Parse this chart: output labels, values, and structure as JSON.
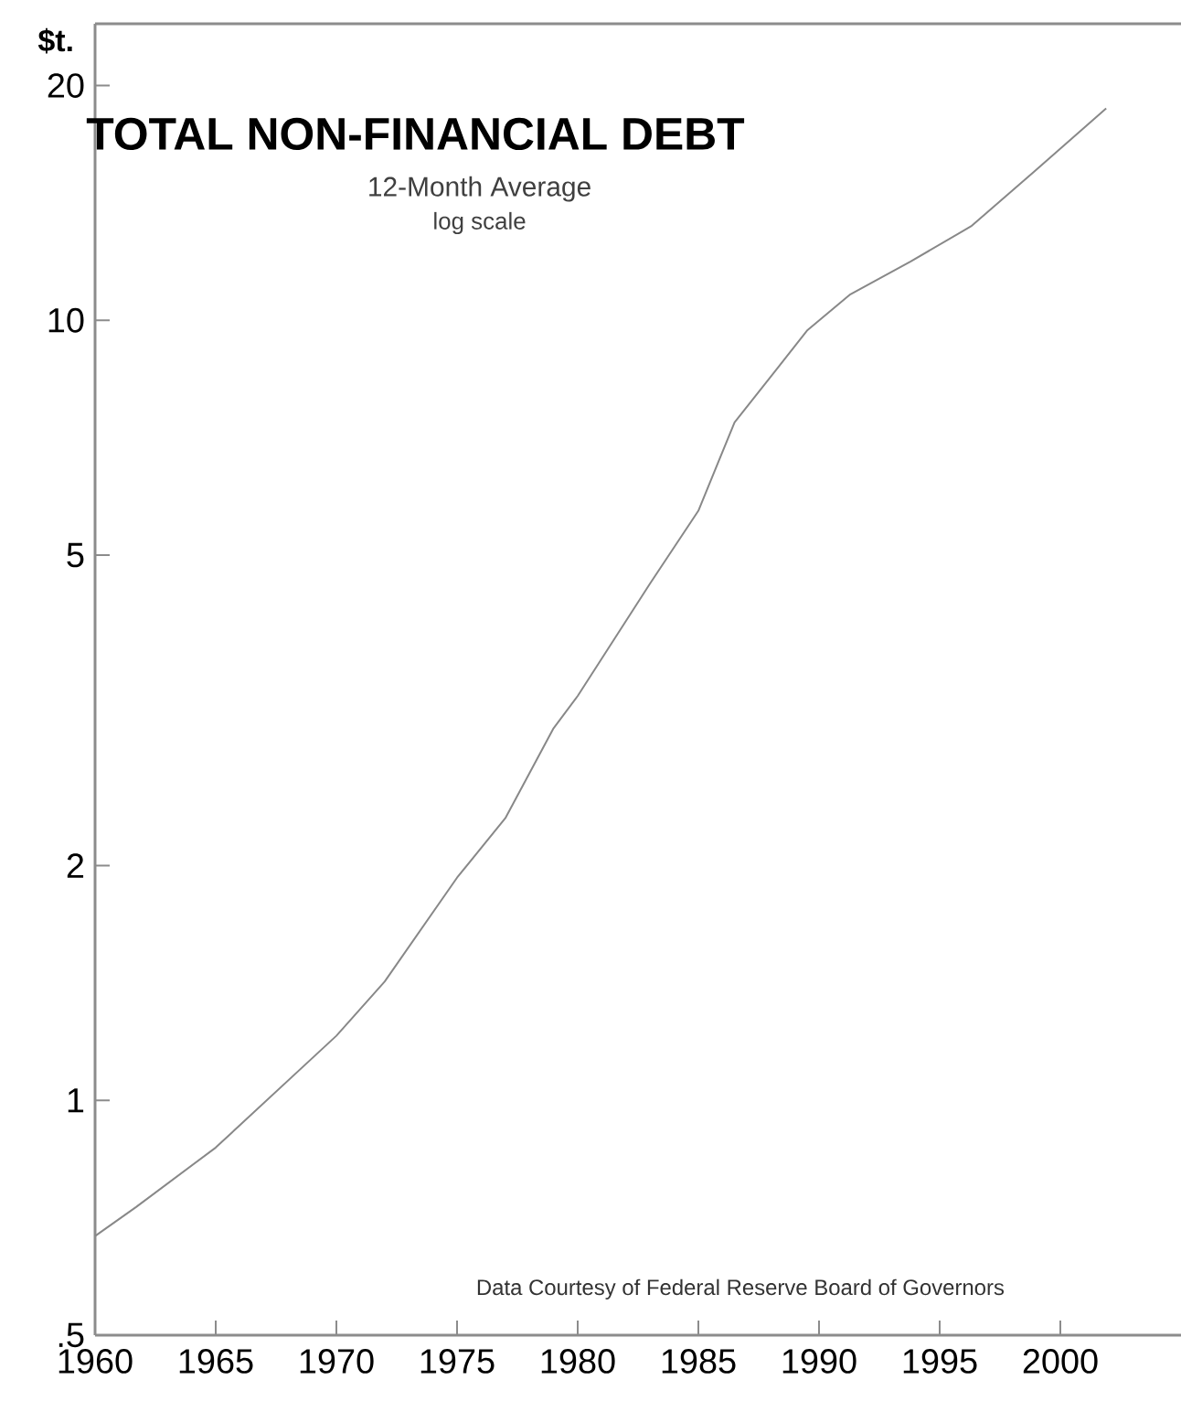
{
  "chart_data": {
    "type": "line",
    "title": "TOTAL NON-FINANCIAL DEBT",
    "subtitle": "12-Month Average",
    "ylabel": "$t.",
    "annotations": [
      "log scale",
      "Data Courtesy of Federal Reserve Board of Governors"
    ],
    "x": [
      1960,
      1961.7,
      1965,
      1970,
      1972,
      1975,
      1977,
      1979,
      1980,
      1983,
      1985,
      1986.5,
      1988.3,
      1989.5,
      1991.3,
      1993.8,
      1996.3,
      1998.9,
      2001.9
    ],
    "series": [
      {
        "color": "#888888",
        "values": [
          0.67,
          0.73,
          0.87,
          1.21,
          1.42,
          1.93,
          2.3,
          3.0,
          3.3,
          4.6,
          5.7,
          7.4,
          8.7,
          9.7,
          10.8,
          11.9,
          13.2,
          15.5,
          18.7
        ]
      }
    ],
    "xlim": [
      1960,
      2005
    ],
    "xticks": [
      1960,
      1965,
      1970,
      1975,
      1980,
      1985,
      1990,
      1995,
      2000
    ],
    "ylim": [
      0.5,
      24
    ],
    "yticks": [
      {
        "value": 0.5,
        "label": ".5"
      },
      1,
      2,
      5,
      10,
      20
    ],
    "log": true,
    "grid": false,
    "marker": "none",
    "line_style": "solid"
  }
}
